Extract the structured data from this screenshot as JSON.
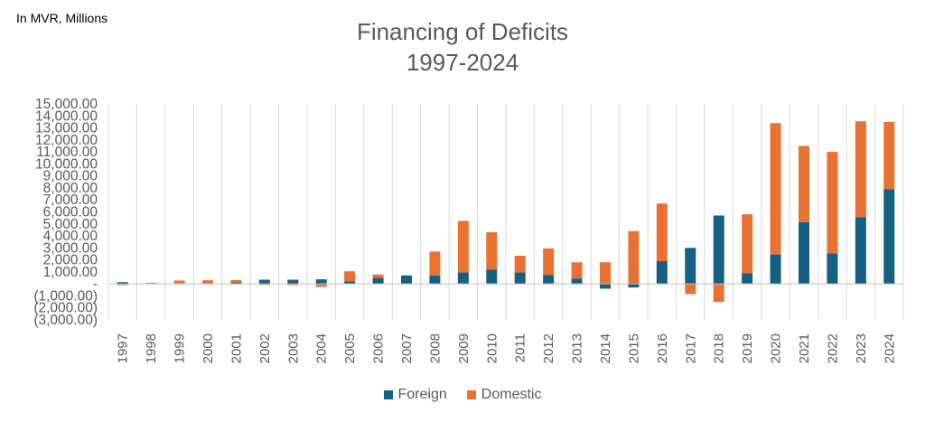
{
  "unit_label": "In MVR, Millions",
  "colors": {
    "foreign": "#156082",
    "domestic": "#E97132",
    "grid": "#D9D9D9",
    "axis": "#BFBFBF"
  },
  "chart_data": {
    "type": "bar",
    "stacked": true,
    "title": [
      "Financing of Deficits",
      "1997-2024"
    ],
    "xlabel": "",
    "ylabel": "",
    "ylim": [
      -3000,
      15000
    ],
    "yticks": [
      -3000,
      -2000,
      -1000,
      0,
      1000,
      2000,
      3000,
      4000,
      5000,
      6000,
      7000,
      8000,
      9000,
      10000,
      11000,
      12000,
      13000,
      14000,
      15000
    ],
    "ytick_labels": [
      "(3,000.00)",
      "(2,000.00)",
      "(1,000.00)",
      "-",
      "1,000.00",
      "2,000.00",
      "3,000.00",
      "4,000.00",
      "5,000.00",
      "6,000.00",
      "7,000.00",
      "8,000.00",
      "9,000.00",
      "10,000.00",
      "11,000.00",
      "12,000.00",
      "13,000.00",
      "14,000.00",
      "15,000.00"
    ],
    "categories": [
      "1997",
      "1998",
      "1999",
      "2000",
      "2001",
      "2002",
      "2003",
      "2004",
      "2005",
      "2006",
      "2007",
      "2008",
      "2009",
      "2010",
      "2011",
      "2012",
      "2013",
      "2014",
      "2015",
      "2016",
      "2017",
      "2018",
      "2019",
      "2020",
      "2021",
      "2022",
      "2023",
      "2024"
    ],
    "series": [
      {
        "name": "Foreign",
        "values": [
          150,
          60,
          0,
          0,
          120,
          350,
          350,
          380,
          200,
          500,
          700,
          700,
          950,
          1200,
          950,
          750,
          450,
          -400,
          -300,
          1900,
          3000,
          5700,
          900,
          2450,
          5150,
          2550,
          5550,
          7900
        ]
      },
      {
        "name": "Domestic",
        "values": [
          -100,
          30,
          280,
          300,
          200,
          -80,
          -100,
          -250,
          850,
          280,
          0,
          2000,
          4300,
          3100,
          1400,
          2200,
          1350,
          1800,
          4400,
          4800,
          -850,
          -1500,
          4900,
          10950,
          6350,
          8450,
          8000,
          5600
        ]
      }
    ],
    "legend": {
      "position": "bottom"
    },
    "grid": "vertical"
  }
}
